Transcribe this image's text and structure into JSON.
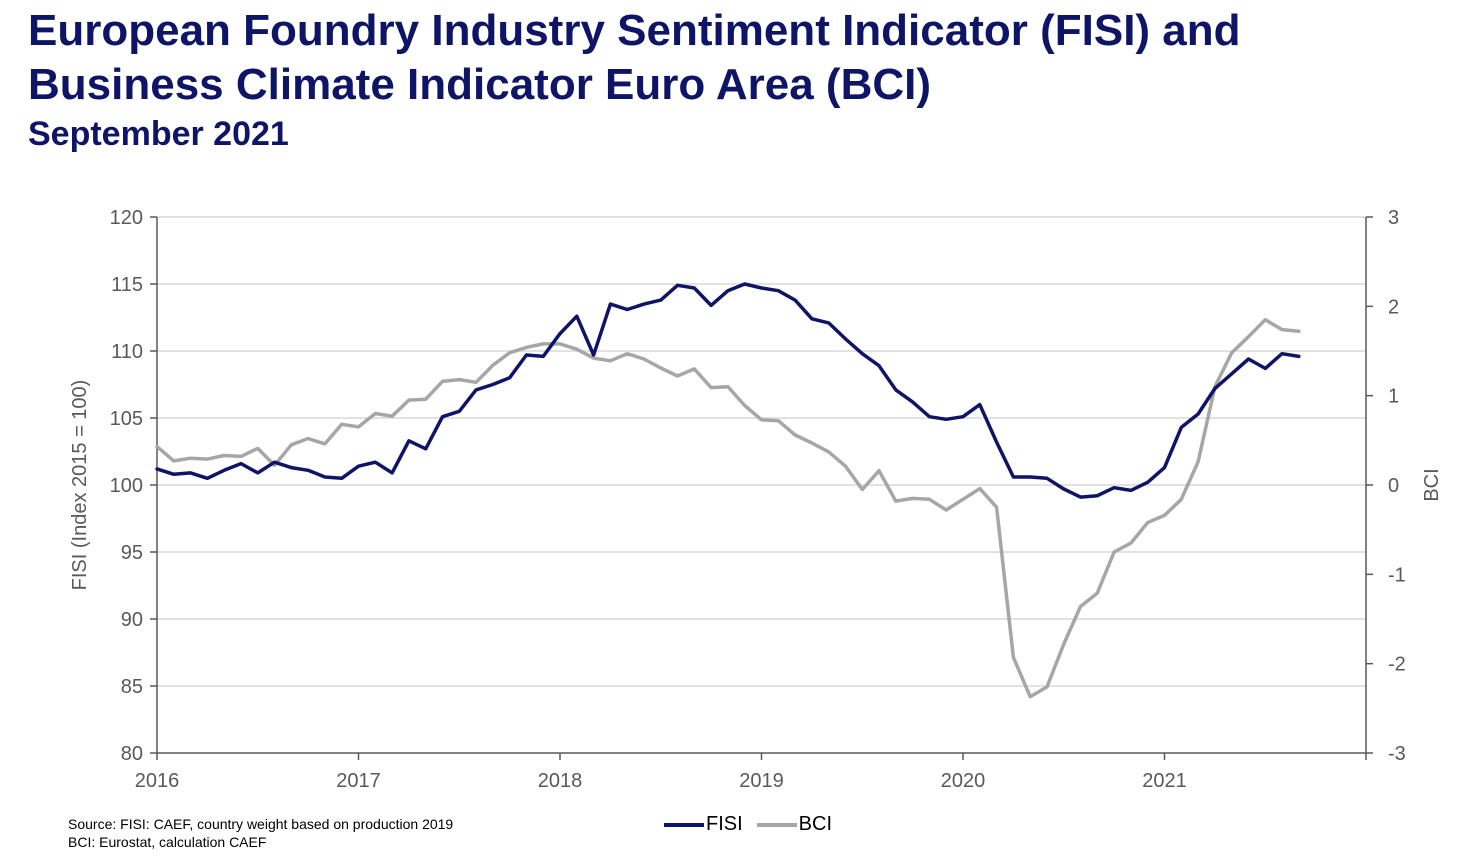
{
  "header": {
    "title": "European Foundry Industry Sentiment Indicator (FISI) and Business Climate Indicator Euro Area (BCI)",
    "subtitle": "September 2021"
  },
  "footer": {
    "source_line1": "Source: FISI: CAEF, country weight based on production 2019",
    "source_line2": "BCI: Eurostat, calculation CAEF"
  },
  "colors": {
    "fisi": "#0f1566",
    "bci": "#a6a6a6",
    "grid": "#d9d9d9",
    "axis": "#595959"
  },
  "chart_data": {
    "type": "line",
    "title": "European Foundry Industry Sentiment Indicator (FISI) and Business Climate Indicator Euro Area (BCI)",
    "subtitle": "September 2021",
    "x_start": "2016-01",
    "x_ticks": [
      "2016",
      "2017",
      "2018",
      "2019",
      "2020",
      "2021"
    ],
    "y_left": {
      "label": "FISI (Index 2015 = 100)",
      "range": [
        80,
        120
      ],
      "ticks": [
        "80",
        "85",
        "90",
        "95",
        "100",
        "105",
        "110",
        "115",
        "120"
      ]
    },
    "y_right": {
      "label": "BCI",
      "range": [
        -3,
        3
      ],
      "ticks": [
        "-3",
        "-2",
        "-1",
        "0",
        "1",
        "2",
        "3"
      ]
    },
    "grid": true,
    "legend": "bottom-center",
    "series": [
      {
        "name": "FISI",
        "axis": "left",
        "values": [
          101.2,
          100.8,
          100.9,
          100.5,
          101.1,
          101.6,
          100.9,
          101.7,
          101.3,
          101.1,
          100.6,
          100.5,
          101.4,
          101.7,
          100.9,
          103.3,
          102.7,
          105.1,
          105.5,
          107.1,
          107.5,
          108.0,
          109.7,
          109.6,
          111.3,
          112.6,
          109.7,
          113.5,
          113.1,
          113.5,
          113.8,
          114.9,
          114.7,
          113.4,
          114.5,
          115.0,
          114.7,
          114.5,
          113.8,
          112.4,
          112.1,
          110.9,
          109.8,
          108.9,
          107.1,
          106.2,
          105.1,
          104.9,
          105.1,
          106.0,
          103.2,
          100.6,
          100.6,
          100.5,
          99.7,
          99.1,
          99.2,
          99.8,
          99.6,
          100.2,
          101.3,
          104.3,
          105.3,
          107.2,
          108.3,
          109.4,
          108.7,
          109.8,
          109.6
        ]
      },
      {
        "name": "BCI",
        "axis": "right",
        "values": [
          0.43,
          0.27,
          0.3,
          0.29,
          0.33,
          0.32,
          0.41,
          0.22,
          0.45,
          0.52,
          0.46,
          0.68,
          0.65,
          0.8,
          0.77,
          0.95,
          0.96,
          1.16,
          1.18,
          1.15,
          1.34,
          1.48,
          1.54,
          1.58,
          1.58,
          1.52,
          1.42,
          1.39,
          1.47,
          1.41,
          1.31,
          1.22,
          1.3,
          1.09,
          1.1,
          0.89,
          0.73,
          0.72,
          0.56,
          0.47,
          0.37,
          0.21,
          -0.05,
          0.16,
          -0.18,
          -0.15,
          -0.16,
          -0.28,
          -0.16,
          -0.04,
          -0.25,
          -1.93,
          -2.37,
          -2.26,
          -1.78,
          -1.36,
          -1.21,
          -0.75,
          -0.65,
          -0.42,
          -0.34,
          -0.16,
          0.26,
          1.1,
          1.48,
          1.66,
          1.85,
          1.74,
          1.72
        ]
      }
    ]
  }
}
